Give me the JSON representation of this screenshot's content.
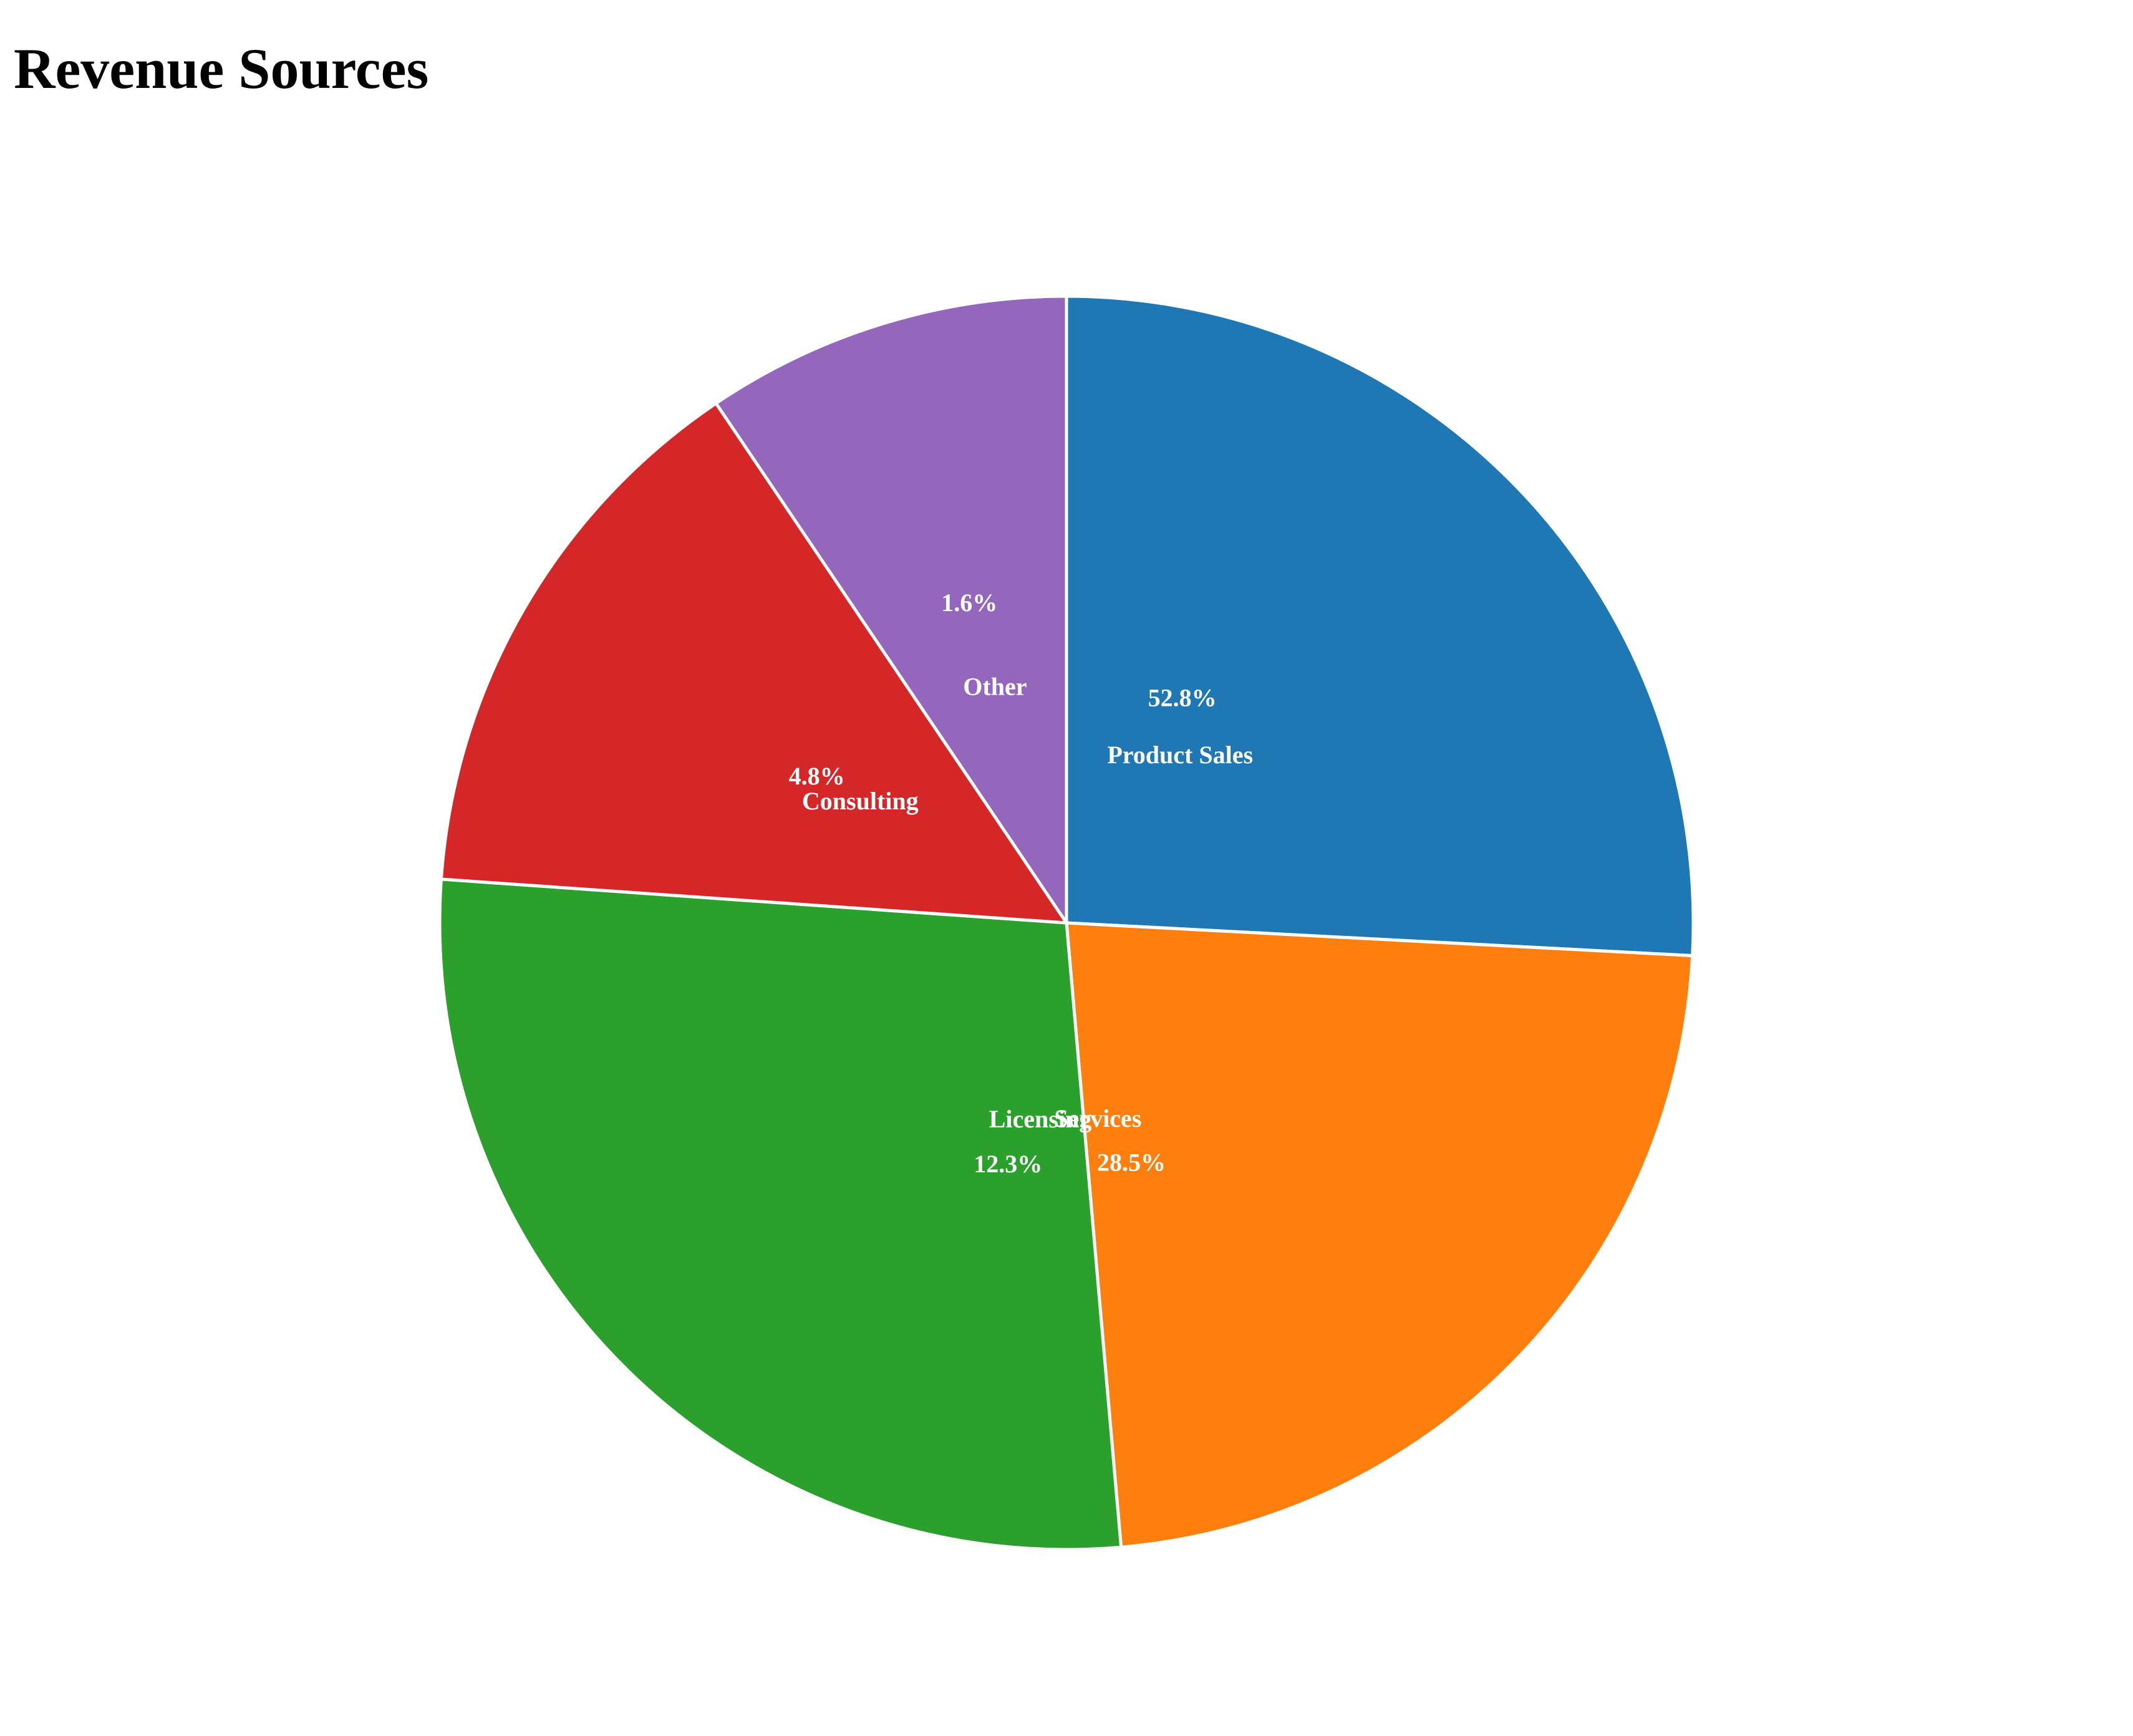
{
  "chart_data": {
    "type": "pie",
    "title": "Revenue Sources",
    "slices": [
      {
        "label": "Product Sales",
        "value": 52.8,
        "percent_label": "52.8%",
        "color": "#1f77b4"
      },
      {
        "label": "Services",
        "value": 28.5,
        "percent_label": "28.5%",
        "color": "#ff7f0e"
      },
      {
        "label": "Licensing",
        "value": 12.3,
        "percent_label": "12.3%",
        "color": "#2ca02c"
      },
      {
        "label": "Consulting",
        "value": 4.8,
        "percent_label": "4.8%",
        "color": "#d62728"
      },
      {
        "label": "Other",
        "value": 1.6,
        "percent_label": "1.6%",
        "color": "#9467bd"
      }
    ],
    "start_angle": "12 o'clock",
    "direction": "clockwise",
    "legend": "none"
  }
}
